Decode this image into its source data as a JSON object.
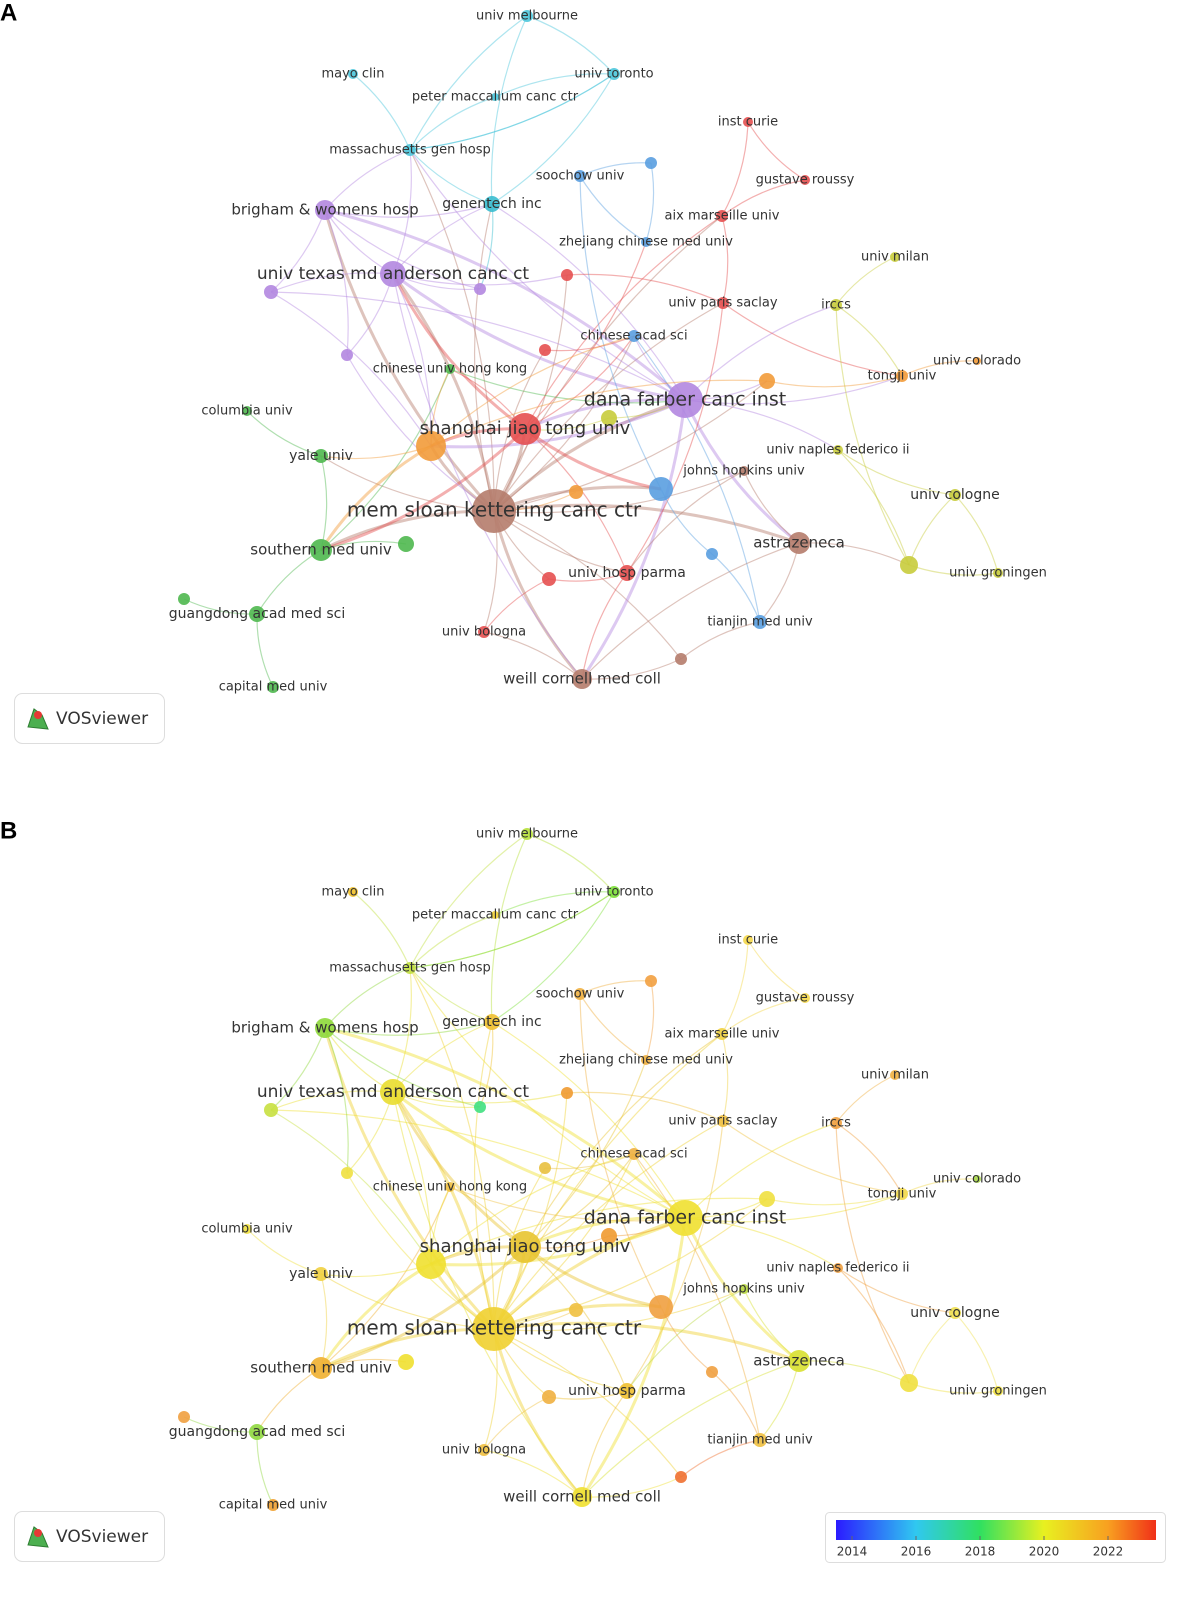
{
  "panels": [
    {
      "letter": "A",
      "watermark": "VOSviewer",
      "nodes": [
        {
          "label": "univ melbourne",
          "color": "#4cc6dc"
        },
        {
          "label": "mayo clin",
          "color": "#4cc6dc"
        },
        {
          "label": "univ toronto",
          "color": "#4cc6dc"
        },
        {
          "label": "peter maccallum canc ctr",
          "color": "#4cc6dc"
        },
        {
          "label": "massachusetts gen hosp",
          "color": "#4cc6dc"
        },
        {
          "label": "genentech inc",
          "color": "#38bccf"
        },
        {
          "label": "brigham & womens hosp",
          "color": "#b387e0"
        },
        {
          "label": "univ texas md anderson canc ct",
          "color": "#b387e0"
        },
        {
          "label": "soochow univ",
          "color": "#5a9fe0"
        },
        {
          "color": "#5a9fe0"
        },
        {
          "label": "inst curie",
          "color": "#e55050"
        },
        {
          "label": "gustave roussy",
          "color": "#e55050"
        },
        {
          "label": "aix marseille univ",
          "color": "#e55050"
        },
        {
          "label": "zhejiang chinese med univ",
          "color": "#5a9fe0"
        },
        {
          "label": "univ milan",
          "color": "#c8cc3c"
        },
        {
          "label": "univ paris saclay",
          "color": "#e55050"
        },
        {
          "label": "irccs",
          "color": "#c8cc3c"
        },
        {
          "label": "chinese acad sci",
          "color": "#5a9fe0"
        },
        {
          "label": "tongji univ",
          "color": "#f29b3a"
        },
        {
          "label": "univ colorado",
          "color": "#f29b3a"
        },
        {
          "label": "dana farber canc inst",
          "color": "#b387e0"
        },
        {
          "label": "shanghai jiao tong univ",
          "color": "#e55050"
        },
        {
          "color": "#f29b3a"
        },
        {
          "label": "columbia univ",
          "color": "#4fb84f"
        },
        {
          "label": "yale univ",
          "color": "#4fb84f"
        },
        {
          "label": "univ naples federico ii",
          "color": "#c8cc3c"
        },
        {
          "label": "johns hopkins univ",
          "color": "#b57c6c"
        },
        {
          "label": "univ cologne",
          "color": "#c8cc3c"
        },
        {
          "label": "mem sloan kettering canc ctr",
          "color": "#b57c6c"
        },
        {
          "label": "astrazeneca",
          "color": "#b57c6c"
        },
        {
          "label": "southern med univ",
          "color": "#4fb84f"
        },
        {
          "label": "univ groningen",
          "color": "#c8cc3c"
        },
        {
          "label": "guangdong acad med sci",
          "color": "#4fb84f"
        },
        {
          "label": "univ hosp parma",
          "color": "#e55050"
        },
        {
          "label": "tianjin med univ",
          "color": "#5a9fe0"
        },
        {
          "label": "univ bologna",
          "color": "#e55050"
        },
        {
          "label": "capital med univ",
          "color": "#4fb84f"
        },
        {
          "label": "weill cornell med coll",
          "color": "#b57c6c"
        },
        {
          "label": "chinese univ hong kong",
          "color": "#4fb84f"
        },
        {
          "color": "#b387e0"
        },
        {
          "color": "#b387e0"
        },
        {
          "color": "#b387e0"
        },
        {
          "color": "#e55050"
        },
        {
          "color": "#e55050"
        },
        {
          "color": "#f29b3a"
        },
        {
          "color": "#c8cc3c"
        },
        {
          "color": "#5a9fe0"
        },
        {
          "color": "#f29b3a"
        },
        {
          "color": "#4fb84f"
        },
        {
          "color": "#4fb84f"
        },
        {
          "color": "#e55050"
        },
        {
          "color": "#5a9fe0"
        },
        {
          "color": "#b57c6c"
        },
        {
          "color": "#c8cc3c"
        }
      ]
    },
    {
      "letter": "B",
      "watermark": "VOSviewer",
      "nodes": [
        {
          "label": "univ melbourne",
          "color": "#b6e03a"
        },
        {
          "label": "mayo clin",
          "color": "#f2c229"
        },
        {
          "label": "univ toronto",
          "color": "#7de03a"
        },
        {
          "label": "peter maccallum canc ctr",
          "color": "#f2d23a"
        },
        {
          "label": "massachusetts gen hosp",
          "color": "#c2e040"
        },
        {
          "label": "genentech inc",
          "color": "#f0c030"
        },
        {
          "label": "brigham & womens hosp",
          "color": "#8ed83a"
        },
        {
          "label": "univ texas md anderson canc ct",
          "color": "#e9dd2f"
        },
        {
          "label": "soochow univ",
          "color": "#f0b040"
        },
        {
          "color": "#f2a040"
        },
        {
          "label": "inst curie",
          "color": "#f5d84a"
        },
        {
          "label": "gustave roussy",
          "color": "#f5d84a"
        },
        {
          "label": "aix marseille univ",
          "color": "#f0d040"
        },
        {
          "label": "zhejiang chinese med univ",
          "color": "#f0b040"
        },
        {
          "label": "univ milan",
          "color": "#f0b040"
        },
        {
          "label": "univ paris saclay",
          "color": "#f0c040"
        },
        {
          "label": "irccs",
          "color": "#f0a040"
        },
        {
          "label": "chinese acad sci",
          "color": "#f0b040"
        },
        {
          "label": "tongji univ",
          "color": "#f2d84a"
        },
        {
          "label": "univ colorado",
          "color": "#a8d84a"
        },
        {
          "label": "dana farber canc inst",
          "color": "#f0e030"
        },
        {
          "label": "shanghai jiao tong univ",
          "color": "#e8c430"
        },
        {
          "color": "#f0e030"
        },
        {
          "label": "columbia univ",
          "color": "#f0e040"
        },
        {
          "label": "yale univ",
          "color": "#f0d040"
        },
        {
          "label": "univ naples federico ii",
          "color": "#f0a040"
        },
        {
          "label": "johns hopkins univ",
          "color": "#b8d840"
        },
        {
          "label": "univ cologne",
          "color": "#f0e050"
        },
        {
          "label": "mem sloan kettering canc ctr",
          "color": "#f0d030"
        },
        {
          "label": "astrazeneca",
          "color": "#d8e030"
        },
        {
          "label": "southern med univ",
          "color": "#f0b030"
        },
        {
          "label": "univ groningen",
          "color": "#f0e040"
        },
        {
          "label": "guangdong acad med sci",
          "color": "#90d840"
        },
        {
          "label": "univ hosp parma",
          "color": "#f0c030"
        },
        {
          "label": "tianjin med univ",
          "color": "#f0c040"
        },
        {
          "label": "univ bologna",
          "color": "#f0c040"
        },
        {
          "label": "capital med univ",
          "color": "#f0a030"
        },
        {
          "label": "weill cornell med coll",
          "color": "#f0e030"
        },
        {
          "label": "chinese univ hong kong",
          "color": "#f0c040"
        },
        {
          "color": "#c8e040"
        },
        {
          "color": "#f0e040"
        },
        {
          "color": "#40e080"
        },
        {
          "color": "#f09a30"
        },
        {
          "color": "#e8c040"
        },
        {
          "color": "#f0e040"
        },
        {
          "color": "#f09a30"
        },
        {
          "color": "#f0a040"
        },
        {
          "color": "#f0c040"
        },
        {
          "color": "#f0e030"
        },
        {
          "color": "#f0a040"
        },
        {
          "color": "#f0b040"
        },
        {
          "color": "#f0a040"
        },
        {
          "color": "#f07030"
        },
        {
          "color": "#f0e040"
        }
      ],
      "colorbar": {
        "range": [
          2013.5,
          2023.5
        ],
        "ticks": [
          2014,
          2016,
          2018,
          2020,
          2022
        ]
      }
    }
  ]
}
